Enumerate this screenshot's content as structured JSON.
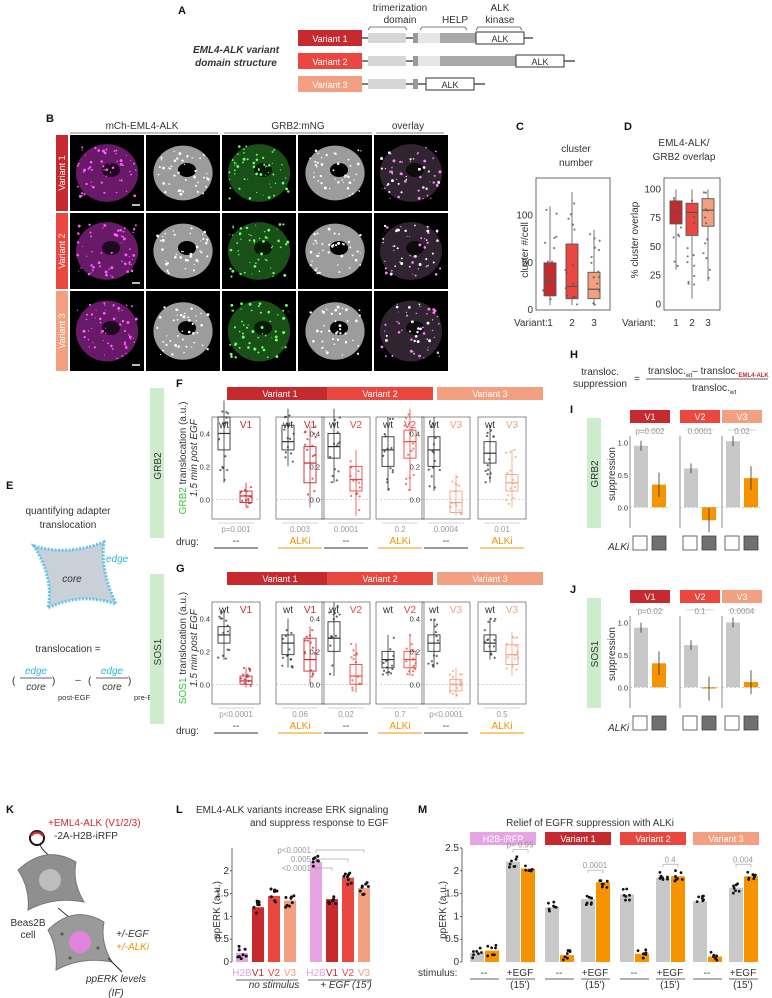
{
  "panel_letters": [
    "A",
    "B",
    "C",
    "D",
    "E",
    "F",
    "G",
    "H",
    "I",
    "J",
    "K",
    "L",
    "M"
  ],
  "colors": {
    "v1": "#c62a2e",
    "v2": "#e9473f",
    "v3": "#f2a081",
    "wt": "#2b2b2b",
    "alki": "#f59300",
    "grey": "#c8c8c8",
    "green_label": "#cdeccc",
    "h2b": "#e6a4e2",
    "magenta": "#d22bd2",
    "green": "#3fe23f"
  },
  "A": {
    "title_line1": "EML4-ALK variant",
    "title_line2": "domain structure",
    "dom_trimer_1": "trimerization",
    "dom_trimer_2": "domain",
    "dom_help": "HELP",
    "dom_alk_1": "ALK",
    "dom_alk_2": "kinase",
    "variants": [
      {
        "label": "Variant 1"
      },
      {
        "label": "Variant 2"
      },
      {
        "label": "Variant 3"
      }
    ],
    "alk_box": "ALK"
  },
  "B": {
    "col_headers": [
      "mCh-EML4-ALK",
      "GRB2:mNG",
      "overlay"
    ],
    "row_labels": [
      "Variant 1",
      "Variant 2",
      "Variant 3"
    ]
  },
  "C": {
    "title_1": "cluster",
    "title_2": "number",
    "ylabel": "cluster #/cell",
    "xlabel": "Variant:",
    "yticks": [
      "0",
      "50",
      "100"
    ],
    "cats": [
      "1",
      "2",
      "3"
    ]
  },
  "D": {
    "title_1": "EML4-ALK/",
    "title_2": "GRB2 overlap",
    "ylabel": "% cluster overlap",
    "xlabel": "Variant:",
    "yticks": [
      "0",
      "25",
      "50",
      "75",
      "100"
    ],
    "cats": [
      "1",
      "2",
      "3"
    ]
  },
  "E": {
    "title_1": "quantifying adapter",
    "title_2": "translocation",
    "core": "core",
    "edge": "edge",
    "eq_lhs": "translocation =",
    "sub_post": "post-EGF",
    "sub_pre": "pre-EGF",
    "minus": "–"
  },
  "F": {
    "side": "GRB2",
    "ylabel_gene": "GRB2",
    "ylabel_rest": " translocation (a.u.)",
    "ylabel_2": "1.5 min post EGF",
    "variant_headers": [
      "Variant 1",
      "Variant 2",
      "Variant 3"
    ],
    "groups": [
      {
        "wt": "wt",
        "mut": "V1",
        "p": "p=0.001",
        "drug": "--"
      },
      {
        "wt": "wt",
        "mut": "V1",
        "p": "0.003",
        "drug": "ALKi"
      },
      {
        "wt": "wt",
        "mut": "V2",
        "p": "0.0001",
        "drug": "--"
      },
      {
        "wt": "wt",
        "mut": "V2",
        "p": "0.2",
        "drug": "ALKi"
      },
      {
        "wt": "wt",
        "mut": "V3",
        "p": "0.0004",
        "drug": "--"
      },
      {
        "wt": "wt",
        "mut": "V3",
        "p": "0.01",
        "drug": "ALKi"
      }
    ],
    "yticks": [
      "0.0",
      "0.2",
      "0.4"
    ],
    "drug_label": "drug:"
  },
  "G": {
    "side": "SOS1",
    "ylabel_gene": "SOS1",
    "ylabel_rest": " translocation (a.u.)",
    "ylabel_2": "1.5 min post EGF",
    "variant_headers": [
      "Variant 1",
      "Variant 2",
      "Variant 3"
    ],
    "groups": [
      {
        "wt": "wt",
        "mut": "V1",
        "p": "p<0.0001",
        "drug": "--"
      },
      {
        "wt": "wt",
        "mut": "V1",
        "p": "0.06",
        "drug": "ALKi"
      },
      {
        "wt": "wt",
        "mut": "V2",
        "p": "0.02",
        "drug": "--"
      },
      {
        "wt": "wt",
        "mut": "V2",
        "p": "0.7",
        "drug": "ALKi"
      },
      {
        "wt": "wt",
        "mut": "V3",
        "p": "p<0.0001",
        "drug": "--"
      },
      {
        "wt": "wt",
        "mut": "V3",
        "p": "0.5",
        "drug": "ALKi"
      }
    ],
    "yticks": [
      "0.0",
      "0.2",
      "0.4"
    ],
    "drug_label": "drug:"
  },
  "H": {
    "lhs_1": "transloc.",
    "lhs_2": "suppression",
    "eq": "=",
    "num_a": "transloc.",
    "num_a_sub": "wt",
    "num_minus": "– transloc.",
    "num_b_sub": "EML4-ALK",
    "den": "transloc.",
    "den_sub": "wt"
  },
  "I": {
    "side": "GRB2",
    "ylabel": "suppression",
    "headers": [
      "V1",
      "V2",
      "V3"
    ],
    "pvals": [
      "p=0.002",
      "0.0001",
      "0.02"
    ],
    "alki": "ALKi",
    "yticks": [
      "0.0",
      "0.5",
      "1.0"
    ],
    "chart_data": {
      "type": "bar",
      "categories": [
        "V1",
        "V2",
        "V3"
      ],
      "series": [
        {
          "name": "",
          "values": [
            0.95,
            0.6,
            1.02
          ]
        },
        {
          "name": "",
          "values": [
            0.35,
            -0.2,
            0.45
          ]
        }
      ]
    }
  },
  "J": {
    "side": "SOS1",
    "ylabel": "suppression",
    "headers": [
      "V1",
      "V2",
      "V3"
    ],
    "pvals": [
      "p=0.02",
      "0.1",
      "0.0004"
    ],
    "alki": "ALKi",
    "yticks": [
      "0.0",
      "0.5",
      "1.0"
    ],
    "chart_data": {
      "type": "bar",
      "categories": [
        "V1",
        "V2",
        "V3"
      ],
      "series": [
        {
          "name": "",
          "values": [
            0.92,
            0.65,
            1.0
          ]
        },
        {
          "name": "",
          "values": [
            0.37,
            -0.02,
            0.08
          ]
        }
      ]
    }
  },
  "K": {
    "line1": "+EML4-ALK (V1/2/3)",
    "line2": "-2A-H2B-iRFP",
    "cell_1": "Beas2B",
    "cell_2": "cell",
    "egf": "+/-EGF",
    "alki": "+/-ALKi",
    "out_1": "ppERK levels",
    "out_2": "(IF)"
  },
  "L": {
    "title_1": "EML4-ALK variants increase ERK signaling",
    "title_2": "and suppress response to EGF",
    "ylabel": "ppERK (a.u.)",
    "yticks": [
      "0",
      "0.5",
      "1",
      "1.5",
      "2"
    ],
    "cats": [
      "H2B",
      "V1",
      "V2",
      "V3",
      "H2B",
      "V1",
      "V2",
      "V3"
    ],
    "group_1": "no stimulus",
    "group_2": "+ EGF (15')",
    "pvals": [
      "p<0.0001",
      "0.005",
      "<0.0001"
    ],
    "chart_data": {
      "type": "bar",
      "categories": [
        "H2B",
        "V1",
        "V2",
        "V3",
        "H2B",
        "V1",
        "V2",
        "V3"
      ],
      "values": [
        0.2,
        1.2,
        1.45,
        1.35,
        2.2,
        1.38,
        1.85,
        1.62
      ],
      "ylim": [
        0,
        2.5
      ]
    }
  },
  "M": {
    "title": "Relief of EGFR suppression with ALKi",
    "headers": [
      "H2B-iRFP",
      "Variant 1",
      "Variant 2",
      "Variant 3"
    ],
    "pvals": [
      "p= 0.99",
      "0.0001",
      "0.4",
      "0.004"
    ],
    "ylabel": "ppERK (a.u.)",
    "yticks": [
      "0",
      "0.5",
      "1",
      "1.5",
      "2",
      "2.5"
    ],
    "stim_label": "stimulus:",
    "stim_none": "--",
    "stim_egf": "+EGF",
    "stim_time": "(15')",
    "chart_data": {
      "type": "bar",
      "categories": [
        "H2B-iRFP --",
        "H2B-iRFP +EGF",
        "Variant 1 --",
        "Variant 1 +EGF",
        "Variant 2 --",
        "Variant 2 +EGF",
        "Variant 3 --",
        "Variant 3 +EGF"
      ],
      "series": [
        {
          "name": "",
          "values": [
            0.2,
            2.2,
            1.2,
            1.38,
            1.48,
            1.85,
            1.33,
            1.63
          ]
        },
        {
          "name": "",
          "values": [
            0.25,
            2.05,
            0.15,
            1.75,
            0.18,
            1.88,
            0.12,
            1.88
          ]
        }
      ],
      "ylim": [
        0,
        2.5
      ]
    }
  }
}
